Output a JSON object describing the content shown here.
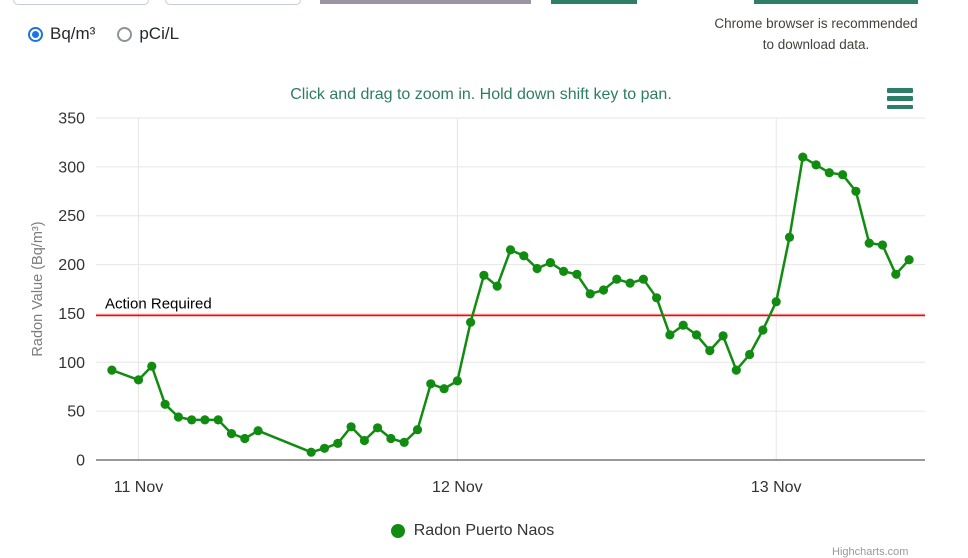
{
  "unit_toggle": {
    "options": [
      {
        "label": "Bq/m³",
        "selected": true
      },
      {
        "label": "pCi/L",
        "selected": false
      }
    ]
  },
  "download_note": {
    "line1": "Chrome browser is recommended",
    "line2": "to download data."
  },
  "chart": {
    "hint": "Click and drag to zoom in. Hold down shift key to pan.",
    "menu_icon": "hamburger-menu-icon",
    "credit": "Highcharts.com"
  },
  "legend": [
    {
      "label": "Radon Puerto Naos",
      "color": "#118c11"
    }
  ],
  "colors": {
    "series_green": "#118c11",
    "theme_green": "#2e7d68",
    "hint_green": "#2e7d62",
    "action_line_red": "#ff0000",
    "radio_selected_blue": "#1a73e8",
    "grid_gray": "#e6e6e6",
    "axis_text": "#333333"
  },
  "chart_data": {
    "type": "line",
    "title": "",
    "x_axis": {
      "unit": "hours since 11 Nov 00:00 (estimated, hourly readings)",
      "range": [
        -3.2,
        59.2
      ],
      "ticks": [
        {
          "x": 0,
          "label": "11 Nov"
        },
        {
          "x": 24,
          "label": "12 Nov"
        },
        {
          "x": 48,
          "label": "13 Nov"
        }
      ]
    },
    "y_axis": {
      "title": "Radon Value (Bq/m³)",
      "range": [
        0,
        350
      ],
      "tick_interval": 50,
      "ticks": [
        0,
        50,
        100,
        150,
        200,
        250,
        300,
        350
      ]
    },
    "plot_line": {
      "value": 148,
      "label": "Action Required",
      "color": "#ff0000"
    },
    "grid": true,
    "legend_position": "bottom-center",
    "series": [
      {
        "name": "Radon Puerto Naos",
        "color": "#118c11",
        "points": [
          [
            -2,
            92
          ],
          [
            0,
            82
          ],
          [
            1,
            96
          ],
          [
            2,
            57
          ],
          [
            3,
            44
          ],
          [
            4,
            41
          ],
          [
            5,
            41
          ],
          [
            6,
            41
          ],
          [
            7,
            27
          ],
          [
            8,
            22
          ],
          [
            9,
            30
          ],
          [
            13,
            8
          ],
          [
            14,
            12
          ],
          [
            15,
            17
          ],
          [
            16,
            34
          ],
          [
            17,
            20
          ],
          [
            18,
            33
          ],
          [
            19,
            22
          ],
          [
            20,
            18
          ],
          [
            21,
            31
          ],
          [
            22,
            78
          ],
          [
            23,
            73
          ],
          [
            24,
            81
          ],
          [
            25,
            141
          ],
          [
            26,
            189
          ],
          [
            27,
            178
          ],
          [
            28,
            215
          ],
          [
            29,
            209
          ],
          [
            30,
            196
          ],
          [
            31,
            202
          ],
          [
            32,
            193
          ],
          [
            33,
            190
          ],
          [
            34,
            170
          ],
          [
            35,
            174
          ],
          [
            36,
            185
          ],
          [
            37,
            181
          ],
          [
            38,
            185
          ],
          [
            39,
            166
          ],
          [
            40,
            128
          ],
          [
            41,
            138
          ],
          [
            42,
            128
          ],
          [
            43,
            112
          ],
          [
            44,
            127
          ],
          [
            45,
            92
          ],
          [
            46,
            108
          ],
          [
            47,
            133
          ],
          [
            48,
            162
          ],
          [
            49,
            228
          ],
          [
            50,
            310
          ],
          [
            51,
            302
          ],
          [
            52,
            294
          ],
          [
            53,
            292
          ],
          [
            54,
            275
          ],
          [
            55,
            222
          ],
          [
            56,
            220
          ],
          [
            57,
            190
          ],
          [
            58,
            205
          ]
        ]
      }
    ]
  }
}
